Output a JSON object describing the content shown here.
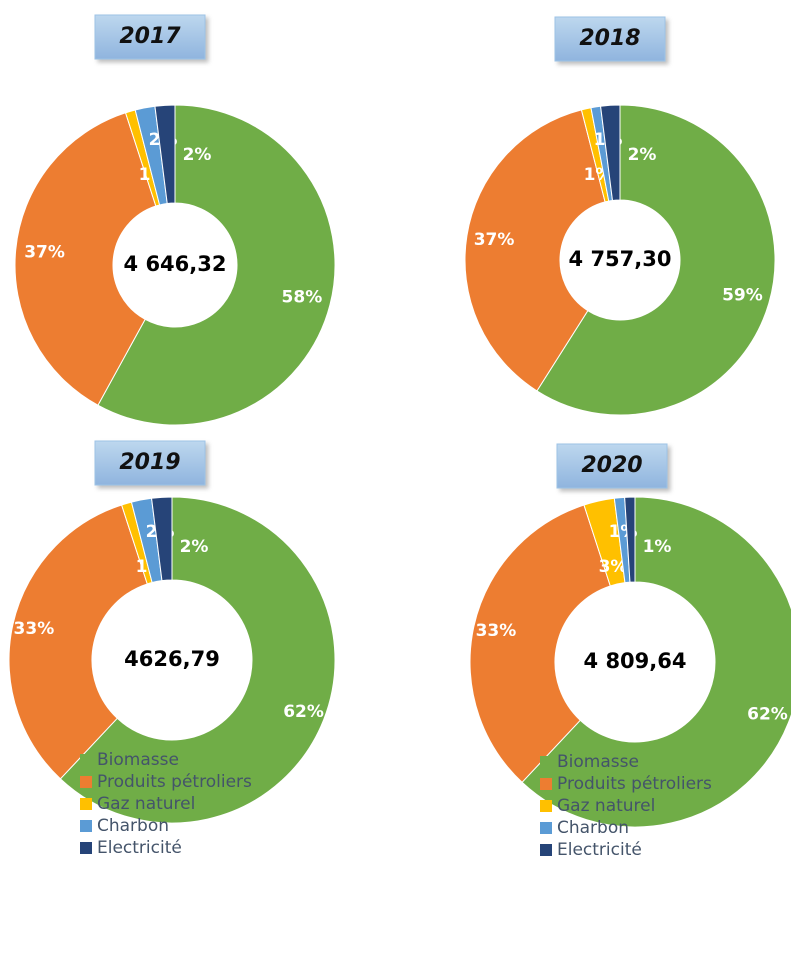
{
  "chart_data": [
    {
      "type": "donut",
      "title": "2017",
      "center_label": "4 646,32",
      "categories": [
        "Biomasse",
        "Produits pétroliers",
        "Gaz naturel",
        "Charbon",
        "Electricité"
      ],
      "values": [
        58,
        37,
        1,
        2,
        2
      ],
      "value_labels": [
        "58%",
        "37%",
        "1%",
        "2%",
        "2%"
      ],
      "colors": [
        "#70ad47",
        "#ed7d31",
        "#ffc000",
        "#5b9bd5",
        "#264478"
      ]
    },
    {
      "type": "donut",
      "title": "2018",
      "center_label": "4 757,30",
      "categories": [
        "Biomasse",
        "Produits pétroliers",
        "Gaz naturel",
        "Charbon",
        "Electricité"
      ],
      "values": [
        59,
        37,
        1,
        1,
        2
      ],
      "value_labels": [
        "59%",
        "37%",
        "1%",
        "1%",
        "2%"
      ],
      "colors": [
        "#70ad47",
        "#ed7d31",
        "#ffc000",
        "#5b9bd5",
        "#264478"
      ]
    },
    {
      "type": "donut",
      "title": "2019",
      "center_label": "4626,79",
      "categories": [
        "Biomasse",
        "Produits pétroliers",
        "Gaz naturel",
        "Charbon",
        "Electricité"
      ],
      "values": [
        62,
        33,
        1,
        2,
        2
      ],
      "value_labels": [
        "62%",
        "33%",
        "1%",
        "2%",
        "2%"
      ],
      "colors": [
        "#70ad47",
        "#ed7d31",
        "#ffc000",
        "#5b9bd5",
        "#264478"
      ]
    },
    {
      "type": "donut",
      "title": "2020",
      "center_label": "4 809,64",
      "categories": [
        "Biomasse",
        "Produits pétroliers",
        "Gaz naturel",
        "Charbon",
        "Electricité"
      ],
      "values": [
        62,
        33,
        3,
        1,
        1
      ],
      "value_labels": [
        "62%",
        "33%",
        "3%",
        "1%",
        "1%"
      ],
      "colors": [
        "#70ad47",
        "#ed7d31",
        "#ffc000",
        "#5b9bd5",
        "#264478"
      ]
    }
  ]
}
